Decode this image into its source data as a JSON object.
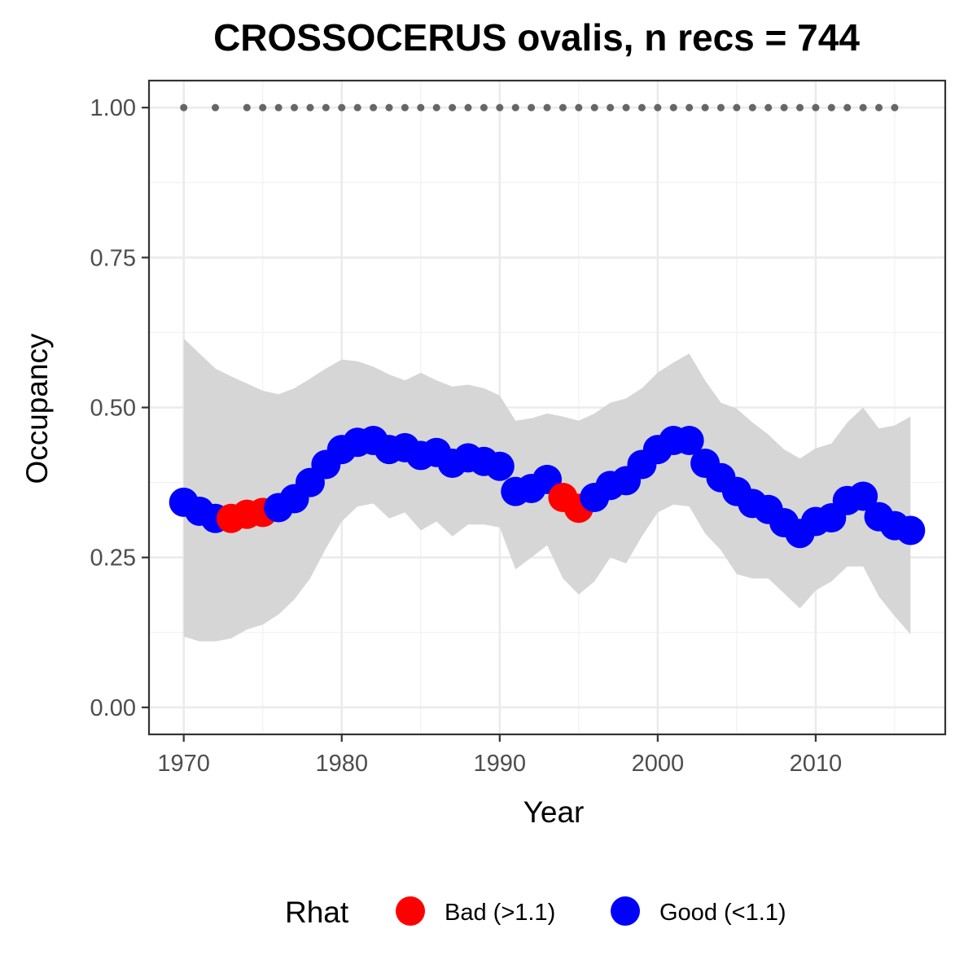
{
  "chart_data": {
    "type": "line",
    "title": "CROSSOCERUS ovalis, n recs = 744",
    "xlabel": "Year",
    "ylabel": "Occupancy",
    "xlim": [
      1967.8,
      2018.2
    ],
    "ylim": [
      -0.045,
      1.045
    ],
    "x_ticks": [
      1970,
      1980,
      1990,
      2000,
      2010
    ],
    "x_tick_labels": [
      "1970",
      "1980",
      "1990",
      "2000",
      "2010"
    ],
    "y_ticks": [
      0,
      0.25,
      0.5,
      0.75,
      1.0
    ],
    "y_tick_labels": [
      "0.00",
      "0.25",
      "0.50",
      "0.75",
      "1.00"
    ],
    "grid": true,
    "legend": {
      "title": "Rhat",
      "position": "bottom",
      "entries": [
        {
          "key": "bad",
          "label": "Bad (>1.1)",
          "color": "#ff0000"
        },
        {
          "key": "good",
          "label": "Good (<1.1)",
          "color": "#0000ff"
        }
      ]
    },
    "colors": {
      "bad": "#ff0000",
      "good": "#0000ff",
      "ribbon": "#d6d6d6",
      "records": "#666666"
    },
    "years": [
      1970,
      1971,
      1972,
      1973,
      1974,
      1975,
      1976,
      1977,
      1978,
      1979,
      1980,
      1981,
      1982,
      1983,
      1984,
      1985,
      1986,
      1987,
      1988,
      1989,
      1990,
      1991,
      1992,
      1993,
      1994,
      1995,
      1996,
      1997,
      1998,
      1999,
      2000,
      2001,
      2002,
      2003,
      2004,
      2005,
      2006,
      2007,
      2008,
      2009,
      2010,
      2011,
      2012,
      2013,
      2014,
      2015,
      2016
    ],
    "occupancy": [
      0.342,
      0.327,
      0.315,
      0.315,
      0.322,
      0.325,
      0.333,
      0.348,
      0.375,
      0.405,
      0.43,
      0.442,
      0.445,
      0.43,
      0.433,
      0.42,
      0.425,
      0.407,
      0.416,
      0.41,
      0.402,
      0.36,
      0.365,
      0.38,
      0.35,
      0.332,
      0.35,
      0.37,
      0.378,
      0.405,
      0.43,
      0.445,
      0.445,
      0.407,
      0.383,
      0.36,
      0.34,
      0.33,
      0.308,
      0.29,
      0.31,
      0.316,
      0.345,
      0.352,
      0.318,
      0.303,
      0.295
    ],
    "rhat": [
      "good",
      "good",
      "good",
      "bad",
      "bad",
      "bad",
      "good",
      "good",
      "good",
      "good",
      "good",
      "good",
      "good",
      "good",
      "good",
      "good",
      "good",
      "good",
      "good",
      "good",
      "good",
      "good",
      "good",
      "good",
      "bad",
      "bad",
      "good",
      "good",
      "good",
      "good",
      "good",
      "good",
      "good",
      "good",
      "good",
      "good",
      "good",
      "good",
      "good",
      "good",
      "good",
      "good",
      "good",
      "good",
      "good",
      "good",
      "good"
    ],
    "upper": [
      0.615,
      0.59,
      0.565,
      0.552,
      0.54,
      0.528,
      0.522,
      0.532,
      0.548,
      0.565,
      0.58,
      0.577,
      0.568,
      0.555,
      0.545,
      0.558,
      0.545,
      0.535,
      0.538,
      0.532,
      0.52,
      0.478,
      0.482,
      0.49,
      0.485,
      0.478,
      0.49,
      0.508,
      0.515,
      0.532,
      0.558,
      0.575,
      0.59,
      0.545,
      0.508,
      0.498,
      0.475,
      0.455,
      0.43,
      0.415,
      0.432,
      0.44,
      0.475,
      0.5,
      0.465,
      0.47,
      0.485
    ],
    "lower": [
      0.118,
      0.11,
      0.11,
      0.115,
      0.13,
      0.138,
      0.155,
      0.18,
      0.215,
      0.265,
      0.31,
      0.335,
      0.34,
      0.315,
      0.325,
      0.295,
      0.31,
      0.285,
      0.305,
      0.305,
      0.3,
      0.23,
      0.25,
      0.27,
      0.215,
      0.188,
      0.21,
      0.25,
      0.24,
      0.285,
      0.325,
      0.338,
      0.335,
      0.29,
      0.262,
      0.222,
      0.215,
      0.215,
      0.19,
      0.165,
      0.195,
      0.21,
      0.235,
      0.235,
      0.185,
      0.152,
      0.122
    ],
    "record_years": [
      1970,
      1972,
      1974,
      1975,
      1976,
      1977,
      1978,
      1979,
      1980,
      1981,
      1982,
      1983,
      1984,
      1985,
      1986,
      1987,
      1988,
      1989,
      1990,
      1991,
      1992,
      1993,
      1994,
      1995,
      1996,
      1997,
      1998,
      1999,
      2000,
      2001,
      2002,
      2003,
      2004,
      2005,
      2006,
      2007,
      2008,
      2009,
      2010,
      2011,
      2012,
      2013,
      2014,
      2015
    ],
    "record_value": 1.0
  }
}
